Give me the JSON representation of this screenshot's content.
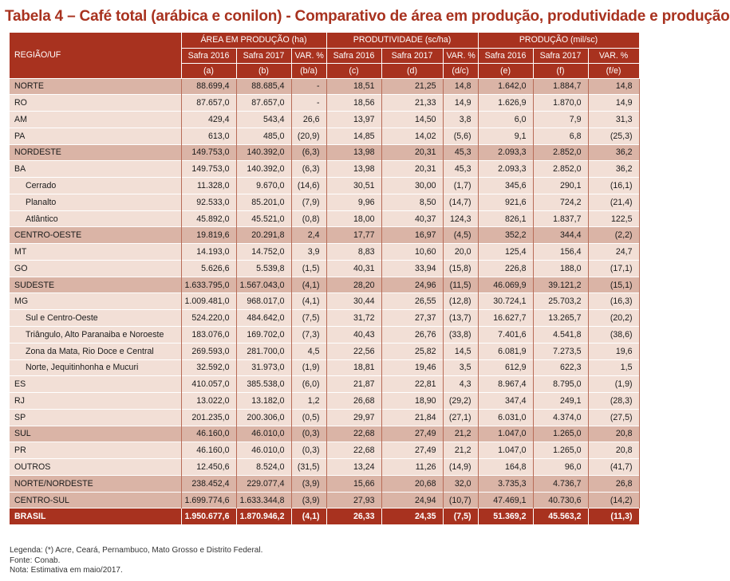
{
  "title": "Tabela 4 – Café total (arábica e conilon) - Comparativo de área em produção, produtividade e produção",
  "header": {
    "region_label": "REGIÃO/UF",
    "groups": [
      "ÁREA EM PRODUÇÃO (ha)",
      "PRODUTIVIDADE (sc/ha)",
      "PRODUÇÃO  (mil/sc)"
    ],
    "subcols": [
      "Safra 2016",
      "Safra 2017",
      "VAR. %",
      "Safra 2016",
      "Safra 2017",
      "VAR. %",
      "Safra 2016",
      "Safra 2017",
      "VAR. %"
    ],
    "letters": [
      "(a)",
      "(b)",
      "(b/a)",
      "(c)",
      "(d)",
      "(d/c)",
      "(e)",
      "(f)",
      "(f/e)"
    ]
  },
  "rows": [
    {
      "name": "NORTE",
      "kind": "major",
      "v": [
        "88.699,4",
        "88.685,4",
        "-",
        "18,51",
        "21,25",
        "14,8",
        "1.642,0",
        "1.884,7",
        "14,8"
      ]
    },
    {
      "name": "RO",
      "kind": "minor",
      "v": [
        "87.657,0",
        "87.657,0",
        "-",
        "18,56",
        "21,33",
        "14,9",
        "1.626,9",
        "1.870,0",
        "14,9"
      ]
    },
    {
      "name": "AM",
      "kind": "minor",
      "v": [
        "429,4",
        "543,4",
        "26,6",
        "13,97",
        "14,50",
        "3,8",
        "6,0",
        "7,9",
        "31,3"
      ]
    },
    {
      "name": "PA",
      "kind": "minor",
      "v": [
        "613,0",
        "485,0",
        "(20,9)",
        "14,85",
        "14,02",
        "(5,6)",
        "9,1",
        "6,8",
        "(25,3)"
      ]
    },
    {
      "name": "NORDESTE",
      "kind": "major",
      "v": [
        "149.753,0",
        "140.392,0",
        "(6,3)",
        "13,98",
        "20,31",
        "45,3",
        "2.093,3",
        "2.852,0",
        "36,2"
      ]
    },
    {
      "name": "BA",
      "kind": "minor",
      "v": [
        "149.753,0",
        "140.392,0",
        "(6,3)",
        "13,98",
        "20,31",
        "45,3",
        "2.093,3",
        "2.852,0",
        "36,2"
      ]
    },
    {
      "name": "Cerrado",
      "kind": "minor sub",
      "v": [
        "11.328,0",
        "9.670,0",
        "(14,6)",
        "30,51",
        "30,00",
        "(1,7)",
        "345,6",
        "290,1",
        "(16,1)"
      ]
    },
    {
      "name": "Planalto",
      "kind": "minor sub",
      "v": [
        "92.533,0",
        "85.201,0",
        "(7,9)",
        "9,96",
        "8,50",
        "(14,7)",
        "921,6",
        "724,2",
        "(21,4)"
      ]
    },
    {
      "name": "Atlântico",
      "kind": "minor sub",
      "v": [
        "45.892,0",
        "45.521,0",
        "(0,8)",
        "18,00",
        "40,37",
        "124,3",
        "826,1",
        "1.837,7",
        "122,5"
      ]
    },
    {
      "name": "CENTRO-OESTE",
      "kind": "major",
      "v": [
        "19.819,6",
        "20.291,8",
        "2,4",
        "17,77",
        "16,97",
        "(4,5)",
        "352,2",
        "344,4",
        "(2,2)"
      ]
    },
    {
      "name": "MT",
      "kind": "minor",
      "v": [
        "14.193,0",
        "14.752,0",
        "3,9",
        "8,83",
        "10,60",
        "20,0",
        "125,4",
        "156,4",
        "24,7"
      ]
    },
    {
      "name": "GO",
      "kind": "minor",
      "v": [
        "5.626,6",
        "5.539,8",
        "(1,5)",
        "40,31",
        "33,94",
        "(15,8)",
        "226,8",
        "188,0",
        "(17,1)"
      ]
    },
    {
      "name": "SUDESTE",
      "kind": "major",
      "v": [
        "1.633.795,0",
        "1.567.043,0",
        "(4,1)",
        "28,20",
        "24,96",
        "(11,5)",
        "46.069,9",
        "39.121,2",
        "(15,1)"
      ]
    },
    {
      "name": "MG",
      "kind": "minor",
      "v": [
        "1.009.481,0",
        "968.017,0",
        "(4,1)",
        "30,44",
        "26,55",
        "(12,8)",
        "30.724,1",
        "25.703,2",
        "(16,3)"
      ]
    },
    {
      "name": "Sul e Centro-Oeste",
      "kind": "minor sub",
      "v": [
        "524.220,0",
        "484.642,0",
        "(7,5)",
        "31,72",
        "27,37",
        "(13,7)",
        "16.627,7",
        "13.265,7",
        "(20,2)"
      ]
    },
    {
      "name": "Triângulo, Alto Paranaiba e Noroeste",
      "kind": "minor sub",
      "v": [
        "183.076,0",
        "169.702,0",
        "(7,3)",
        "40,43",
        "26,76",
        "(33,8)",
        "7.401,6",
        "4.541,8",
        "(38,6)"
      ]
    },
    {
      "name": "Zona da Mata, Rio Doce e Central",
      "kind": "minor sub",
      "v": [
        "269.593,0",
        "281.700,0",
        "4,5",
        "22,56",
        "25,82",
        "14,5",
        "6.081,9",
        "7.273,5",
        "19,6"
      ]
    },
    {
      "name": "Norte, Jequitinhonha e Mucuri",
      "kind": "minor sub",
      "v": [
        "32.592,0",
        "31.973,0",
        "(1,9)",
        "18,81",
        "19,46",
        "3,5",
        "612,9",
        "622,3",
        "1,5"
      ]
    },
    {
      "name": "ES",
      "kind": "minor",
      "v": [
        "410.057,0",
        "385.538,0",
        "(6,0)",
        "21,87",
        "22,81",
        "4,3",
        "8.967,4",
        "8.795,0",
        "(1,9)"
      ]
    },
    {
      "name": "RJ",
      "kind": "minor",
      "v": [
        "13.022,0",
        "13.182,0",
        "1,2",
        "26,68",
        "18,90",
        "(29,2)",
        "347,4",
        "249,1",
        "(28,3)"
      ]
    },
    {
      "name": "SP",
      "kind": "minor",
      "v": [
        "201.235,0",
        "200.306,0",
        "(0,5)",
        "29,97",
        "21,84",
        "(27,1)",
        "6.031,0",
        "4.374,0",
        "(27,5)"
      ]
    },
    {
      "name": "SUL",
      "kind": "major",
      "v": [
        "46.160,0",
        "46.010,0",
        "(0,3)",
        "22,68",
        "27,49",
        "21,2",
        "1.047,0",
        "1.265,0",
        "20,8"
      ]
    },
    {
      "name": "PR",
      "kind": "minor",
      "v": [
        "46.160,0",
        "46.010,0",
        "(0,3)",
        "22,68",
        "27,49",
        "21,2",
        "1.047,0",
        "1.265,0",
        "20,8"
      ]
    },
    {
      "name": "OUTROS",
      "kind": "minor",
      "v": [
        "12.450,6",
        "8.524,0",
        "(31,5)",
        "13,24",
        "11,26",
        "(14,9)",
        "164,8",
        "96,0",
        "(41,7)"
      ]
    },
    {
      "name": "NORTE/NORDESTE",
      "kind": "major",
      "v": [
        "238.452,4",
        "229.077,4",
        "(3,9)",
        "15,66",
        "20,68",
        "32,0",
        "3.735,3",
        "4.736,7",
        "26,8"
      ]
    },
    {
      "name": "CENTRO-SUL",
      "kind": "major",
      "v": [
        "1.699.774,6",
        "1.633.344,8",
        "(3,9)",
        "27,93",
        "24,94",
        "(10,7)",
        "47.469,1",
        "40.730,6",
        "(14,2)"
      ]
    },
    {
      "name": "BRASIL",
      "kind": "total",
      "v": [
        "1.950.677,6",
        "1.870.946,2",
        "(4,1)",
        "26,33",
        "24,35",
        "(7,5)",
        "51.369,2",
        "45.563,2",
        "(11,3)"
      ]
    }
  ],
  "notes": [
    "Legenda: (*) Acre, Ceará, Pernambuco, Mato Grosso e Distrito Federal.",
    "Fonte: Conab.",
    "Nota: Estimativa em maio/2017."
  ],
  "colors": {
    "accent": "#a8321f",
    "major_row": "#dab4a6",
    "minor_row": "#f2dfd6"
  }
}
